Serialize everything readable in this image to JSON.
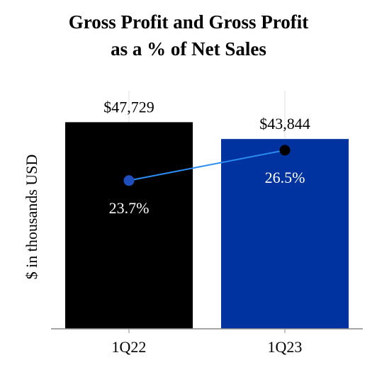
{
  "chart_data": {
    "type": "bar",
    "title_line1": "Gross Profit and Gross Profit",
    "title_line2": "as a % of Net Sales",
    "ylabel": "$ in thousands USD",
    "categories": [
      "1Q22",
      "1Q23"
    ],
    "series": [
      {
        "type": "bar",
        "values": [
          47729,
          43844
        ],
        "labels": [
          "$47,729",
          "$43,844"
        ],
        "colors": [
          "#000000",
          "#0033a0"
        ]
      },
      {
        "type": "line",
        "values": [
          23.7,
          26.5
        ],
        "labels": [
          "23.7%",
          "26.5%"
        ],
        "marker_colors": [
          "#1f4fbf",
          "#000000"
        ],
        "line_color": "#2a8cf0"
      }
    ],
    "ylim": [
      0,
      55000
    ],
    "line_ylim": [
      10,
      32
    ],
    "grid": true
  }
}
